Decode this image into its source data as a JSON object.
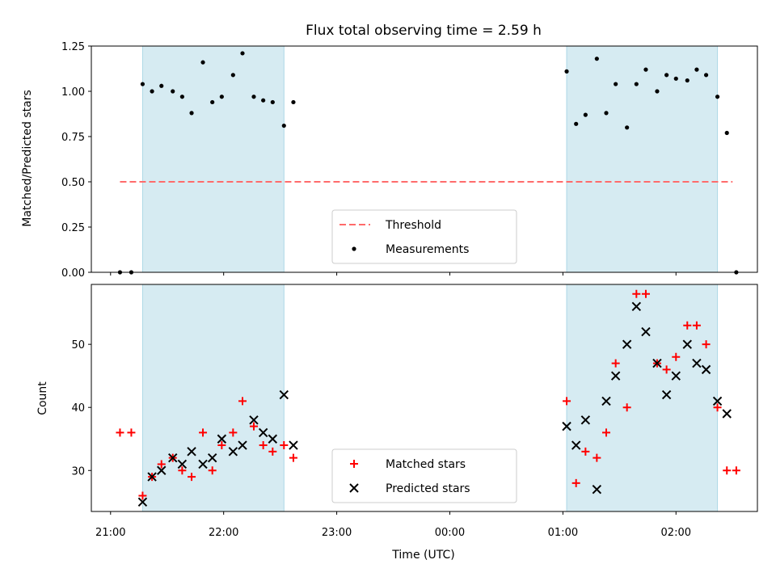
{
  "chart_data": {
    "title": "Flux total observing time = 2.59 h",
    "shaded_intervals": [
      "21:17",
      "22:32",
      "01:02",
      "02:22"
    ],
    "shade_color": "#add8e6",
    "panels": [
      {
        "type": "scatter",
        "ylabel": "Matched/Predicted stars",
        "ylim": [
          0,
          1.25
        ],
        "yticks": [
          "0.00",
          "0.25",
          "0.50",
          "0.75",
          "1.00",
          "1.25"
        ],
        "threshold": {
          "value": 0.5,
          "x_start": "21:05",
          "x_end": "02:30",
          "color": "#ff6b6b",
          "style": "dashed"
        },
        "series": [
          {
            "name": "Measurements",
            "color": "#000000",
            "marker": "dot",
            "points": [
              [
                "21:05",
                0.0
              ],
              [
                "21:11",
                0.0
              ],
              [
                "21:17",
                1.04
              ],
              [
                "21:22",
                1.0
              ],
              [
                "21:27",
                1.03
              ],
              [
                "21:33",
                1.0
              ],
              [
                "21:38",
                0.97
              ],
              [
                "21:43",
                0.88
              ],
              [
                "21:49",
                1.16
              ],
              [
                "21:54",
                0.94
              ],
              [
                "21:59",
                0.97
              ],
              [
                "22:05",
                1.09
              ],
              [
                "22:10",
                1.21
              ],
              [
                "22:16",
                0.97
              ],
              [
                "22:21",
                0.95
              ],
              [
                "22:26",
                0.94
              ],
              [
                "22:32",
                0.81
              ],
              [
                "22:37",
                0.94
              ],
              [
                "01:02",
                1.11
              ],
              [
                "01:07",
                0.82
              ],
              [
                "01:12",
                0.87
              ],
              [
                "01:18",
                1.18
              ],
              [
                "01:23",
                0.88
              ],
              [
                "01:28",
                1.04
              ],
              [
                "01:34",
                0.8
              ],
              [
                "01:39",
                1.04
              ],
              [
                "01:44",
                1.12
              ],
              [
                "01:50",
                1.0
              ],
              [
                "01:55",
                1.09
              ],
              [
                "02:00",
                1.07
              ],
              [
                "02:06",
                1.06
              ],
              [
                "02:11",
                1.12
              ],
              [
                "02:16",
                1.09
              ],
              [
                "02:22",
                0.97
              ],
              [
                "02:27",
                0.77
              ],
              [
                "02:32",
                0.0
              ]
            ]
          }
        ],
        "legend": [
          {
            "label": "Threshold",
            "marker": "dashed-line",
            "color": "#ff6b6b"
          },
          {
            "label": "Measurements",
            "marker": "dot",
            "color": "#000000"
          }
        ]
      },
      {
        "type": "scatter",
        "ylabel": "Count",
        "ylim": [
          23.5,
          59.5
        ],
        "yticks": [
          "30",
          "40",
          "50"
        ],
        "series": [
          {
            "name": "Matched stars",
            "color": "#ff0000",
            "marker": "plus",
            "points": [
              [
                "21:05",
                36
              ],
              [
                "21:11",
                36
              ],
              [
                "21:17",
                26
              ],
              [
                "21:22",
                29
              ],
              [
                "21:27",
                31
              ],
              [
                "21:33",
                32
              ],
              [
                "21:38",
                30
              ],
              [
                "21:43",
                29
              ],
              [
                "21:49",
                36
              ],
              [
                "21:54",
                30
              ],
              [
                "21:59",
                34
              ],
              [
                "22:05",
                36
              ],
              [
                "22:10",
                41
              ],
              [
                "22:16",
                37
              ],
              [
                "22:21",
                34
              ],
              [
                "22:26",
                33
              ],
              [
                "22:32",
                34
              ],
              [
                "22:37",
                32
              ],
              [
                "01:02",
                41
              ],
              [
                "01:07",
                28
              ],
              [
                "01:12",
                33
              ],
              [
                "01:18",
                32
              ],
              [
                "01:23",
                36
              ],
              [
                "01:28",
                47
              ],
              [
                "01:34",
                40
              ],
              [
                "01:39",
                58
              ],
              [
                "01:44",
                58
              ],
              [
                "01:50",
                47
              ],
              [
                "01:55",
                46
              ],
              [
                "02:00",
                48
              ],
              [
                "02:06",
                53
              ],
              [
                "02:11",
                53
              ],
              [
                "02:16",
                50
              ],
              [
                "02:22",
                40
              ],
              [
                "02:27",
                30
              ],
              [
                "02:32",
                30
              ]
            ]
          },
          {
            "name": "Predicted stars",
            "color": "#000000",
            "marker": "x",
            "points": [
              [
                "21:17",
                25
              ],
              [
                "21:22",
                29
              ],
              [
                "21:27",
                30
              ],
              [
                "21:33",
                32
              ],
              [
                "21:38",
                31
              ],
              [
                "21:43",
                33
              ],
              [
                "21:49",
                31
              ],
              [
                "21:54",
                32
              ],
              [
                "21:59",
                35
              ],
              [
                "22:05",
                33
              ],
              [
                "22:10",
                34
              ],
              [
                "22:16",
                38
              ],
              [
                "22:21",
                36
              ],
              [
                "22:26",
                35
              ],
              [
                "22:32",
                42
              ],
              [
                "22:37",
                34
              ],
              [
                "01:02",
                37
              ],
              [
                "01:07",
                34
              ],
              [
                "01:12",
                38
              ],
              [
                "01:18",
                27
              ],
              [
                "01:23",
                41
              ],
              [
                "01:28",
                45
              ],
              [
                "01:34",
                50
              ],
              [
                "01:39",
                56
              ],
              [
                "01:44",
                52
              ],
              [
                "01:50",
                47
              ],
              [
                "01:55",
                42
              ],
              [
                "02:00",
                45
              ],
              [
                "02:06",
                50
              ],
              [
                "02:11",
                47
              ],
              [
                "02:16",
                46
              ],
              [
                "02:22",
                41
              ],
              [
                "02:27",
                39
              ]
            ]
          }
        ],
        "legend": [
          {
            "label": "Matched stars",
            "marker": "plus",
            "color": "#ff0000"
          },
          {
            "label": "Predicted stars",
            "marker": "x",
            "color": "#000000"
          }
        ]
      }
    ],
    "xlabel": "Time (UTC)",
    "xticks": [
      "21:00",
      "22:00",
      "23:00",
      "00:00",
      "01:00",
      "02:00"
    ]
  }
}
